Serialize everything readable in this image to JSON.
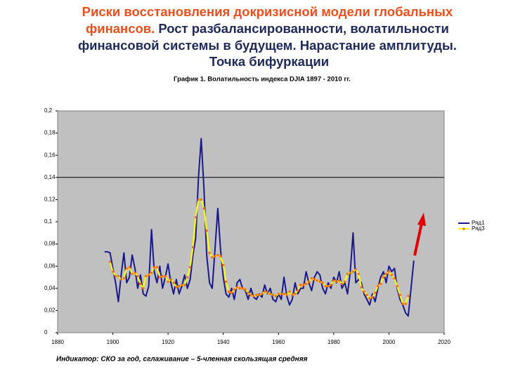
{
  "chart_data": {
    "type": "line",
    "title": [
      "Риски восстановления докризисной модели глобальных",
      "финансов.",
      "Рост разбалансированности, волатильности",
      "финансовой системы в будущем. Нарастание амплитуды.",
      "Точка бифуркации"
    ],
    "subtitle": "График 1. Волатильность индекса DJIA 1897 - 2010 гг.",
    "footnote": "Индикатор: СКО за год, сглаживание – 5-членная скользящая средняя",
    "x": [
      1897,
      1898,
      1899,
      1900,
      1901,
      1902,
      1903,
      1904,
      1905,
      1906,
      1907,
      1908,
      1909,
      1910,
      1911,
      1912,
      1913,
      1914,
      1915,
      1916,
      1917,
      1918,
      1919,
      1920,
      1921,
      1922,
      1923,
      1924,
      1925,
      1926,
      1927,
      1928,
      1929,
      1930,
      1931,
      1932,
      1933,
      1934,
      1935,
      1936,
      1937,
      1938,
      1939,
      1940,
      1941,
      1942,
      1943,
      1944,
      1945,
      1946,
      1947,
      1948,
      1949,
      1950,
      1951,
      1952,
      1953,
      1954,
      1955,
      1956,
      1957,
      1958,
      1959,
      1960,
      1961,
      1962,
      1963,
      1964,
      1965,
      1966,
      1967,
      1968,
      1969,
      1970,
      1971,
      1972,
      1973,
      1974,
      1975,
      1976,
      1977,
      1978,
      1979,
      1980,
      1981,
      1982,
      1983,
      1984,
      1985,
      1986,
      1987,
      1988,
      1989,
      1990,
      1991,
      1992,
      1993,
      1994,
      1995,
      1996,
      1997,
      1998,
      1999,
      2000,
      2001,
      2002,
      2003,
      2004,
      2005,
      2006,
      2007,
      2008,
      2009
    ],
    "series": [
      {
        "name": "Ряд1",
        "color": "#1a1a8c",
        "values": [
          0.073,
          0.073,
          0.072,
          0.058,
          0.045,
          0.028,
          0.052,
          0.072,
          0.045,
          0.05,
          0.07,
          0.058,
          0.04,
          0.052,
          0.035,
          0.033,
          0.042,
          0.093,
          0.055,
          0.045,
          0.06,
          0.04,
          0.05,
          0.062,
          0.045,
          0.035,
          0.048,
          0.035,
          0.042,
          0.052,
          0.04,
          0.048,
          0.07,
          0.085,
          0.14,
          0.175,
          0.13,
          0.07,
          0.045,
          0.04,
          0.075,
          0.112,
          0.075,
          0.05,
          0.035,
          0.032,
          0.04,
          0.03,
          0.045,
          0.048,
          0.04,
          0.038,
          0.03,
          0.04,
          0.032,
          0.03,
          0.035,
          0.032,
          0.043,
          0.035,
          0.04,
          0.03,
          0.028,
          0.035,
          0.03,
          0.05,
          0.033,
          0.025,
          0.03,
          0.045,
          0.035,
          0.04,
          0.04,
          0.055,
          0.045,
          0.038,
          0.05,
          0.055,
          0.052,
          0.04,
          0.035,
          0.045,
          0.04,
          0.05,
          0.045,
          0.055,
          0.04,
          0.045,
          0.035,
          0.055,
          0.09,
          0.045,
          0.048,
          0.045,
          0.035,
          0.03,
          0.025,
          0.035,
          0.028,
          0.04,
          0.05,
          0.055,
          0.045,
          0.06,
          0.055,
          0.058,
          0.04,
          0.03,
          0.025,
          0.018,
          0.015,
          0.04,
          0.065
        ]
      },
      {
        "name": "Ряд3",
        "color": "#ffff00",
        "marker_color": "#ff6600",
        "values": [
          null,
          null,
          0.064,
          0.055,
          0.051,
          0.051,
          0.048,
          0.049,
          0.058,
          0.059,
          0.053,
          0.054,
          0.051,
          0.044,
          0.04,
          0.051,
          0.052,
          0.054,
          0.059,
          0.059,
          0.05,
          0.051,
          0.051,
          0.046,
          0.048,
          0.045,
          0.041,
          0.042,
          0.043,
          0.043,
          0.05,
          0.059,
          0.077,
          0.104,
          0.12,
          0.12,
          0.112,
          0.092,
          0.072,
          0.068,
          0.069,
          0.07,
          0.069,
          0.061,
          0.046,
          0.037,
          0.036,
          0.039,
          0.041,
          0.04,
          0.04,
          0.039,
          0.036,
          0.034,
          0.033,
          0.034,
          0.034,
          0.035,
          0.037,
          0.036,
          0.035,
          0.034,
          0.033,
          0.035,
          0.035,
          0.035,
          0.034,
          0.037,
          0.034,
          0.035,
          0.038,
          0.043,
          0.043,
          0.044,
          0.046,
          0.049,
          0.048,
          0.047,
          0.046,
          0.045,
          0.042,
          0.042,
          0.043,
          0.047,
          0.046,
          0.047,
          0.044,
          0.046,
          0.053,
          0.054,
          0.055,
          0.057,
          0.053,
          0.041,
          0.037,
          0.034,
          0.031,
          0.032,
          0.036,
          0.042,
          0.044,
          0.05,
          0.053,
          0.055,
          0.052,
          0.049,
          0.042,
          0.034,
          0.026,
          0.026,
          0.033,
          null,
          null
        ]
      }
    ],
    "xlim": [
      1880,
      2020
    ],
    "xticks": [
      1880,
      1900,
      1920,
      1940,
      1960,
      1980,
      2000,
      2020
    ],
    "ylim": [
      0,
      0.2
    ],
    "yticks": [
      {
        "value": 0,
        "label": "0"
      },
      {
        "value": 0.02,
        "label": "0,02"
      },
      {
        "value": 0.04,
        "label": "0,04"
      },
      {
        "value": 0.06,
        "label": "0,06"
      },
      {
        "value": 0.08,
        "label": "0,08"
      },
      {
        "value": 0.1,
        "label": "0,1"
      },
      {
        "value": 0.12,
        "label": "0,12"
      },
      {
        "value": 0.14,
        "label": "0,14"
      },
      {
        "value": 0.16,
        "label": "0,16"
      },
      {
        "value": 0.18,
        "label": "0,18"
      },
      {
        "value": 0.2,
        "label": "0,2"
      }
    ],
    "reference_line": 0.14,
    "plot_background": "#c0c0c0",
    "legend": "right"
  }
}
